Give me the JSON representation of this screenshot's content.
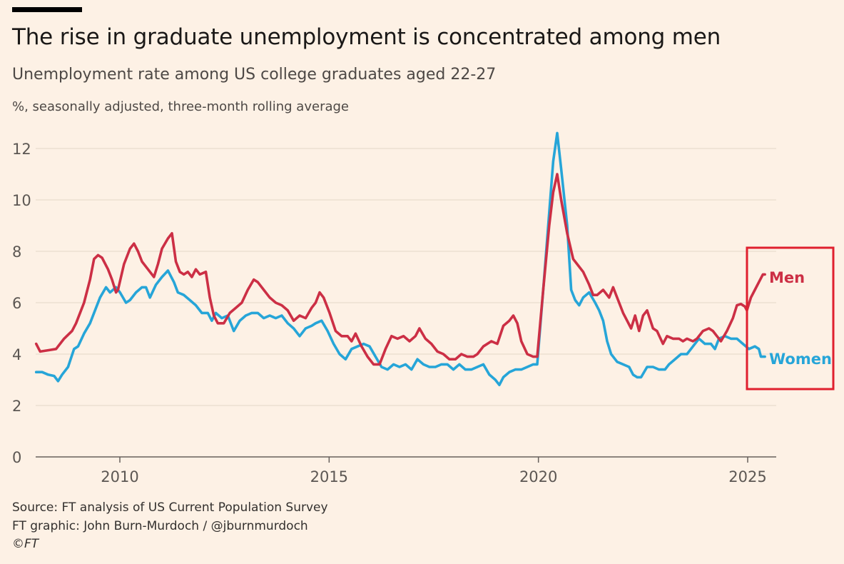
{
  "header": {
    "title": "The rise in graduate unemployment is concentrated among men",
    "subtitle": "Unemployment rate among US college graduates aged 22-27",
    "unit_note": "%, seasonally adjusted, three-month rolling average"
  },
  "footer": {
    "source": "Source: FT analysis of US Current Population Survey",
    "credit": "FT graphic: John Burn-Murdoch / @jburnmurdoch",
    "copyright": "©FT"
  },
  "chart_data": {
    "type": "line",
    "ylabel": "",
    "xlabel": "",
    "xlim": [
      2008.0,
      2025.65
    ],
    "ylim": [
      0,
      12.5
    ],
    "yticks": [
      0,
      2,
      4,
      6,
      8,
      10,
      12
    ],
    "xticks": [
      2010,
      2015,
      2020,
      2025
    ],
    "grid": true,
    "legend": "direct labels at line ends, right",
    "colors": {
      "Men": "#cc2f45",
      "Women": "#26a5d8",
      "highlight_box": "#e0202e"
    },
    "highlight_box": {
      "x_range": [
        2024.95,
        2025.65
      ],
      "y_range": [
        2.7,
        8.3
      ]
    },
    "series": [
      {
        "name": "Men",
        "points": [
          [
            2008.0,
            4.4
          ],
          [
            2008.1,
            4.1
          ],
          [
            2008.3,
            4.15
          ],
          [
            2008.5,
            4.2
          ],
          [
            2008.7,
            4.6
          ],
          [
            2008.9,
            4.9
          ],
          [
            2009.0,
            5.2
          ],
          [
            2009.2,
            6.0
          ],
          [
            2009.35,
            6.9
          ],
          [
            2009.45,
            7.7
          ],
          [
            2009.55,
            7.85
          ],
          [
            2009.65,
            7.75
          ],
          [
            2009.8,
            7.3
          ],
          [
            2009.9,
            6.9
          ],
          [
            2010.0,
            6.4
          ],
          [
            2010.05,
            6.5
          ],
          [
            2010.2,
            7.5
          ],
          [
            2010.35,
            8.1
          ],
          [
            2010.45,
            8.3
          ],
          [
            2010.55,
            8.0
          ],
          [
            2010.65,
            7.6
          ],
          [
            2010.8,
            7.3
          ],
          [
            2010.95,
            7.0
          ],
          [
            2011.05,
            7.5
          ],
          [
            2011.15,
            8.1
          ],
          [
            2011.3,
            8.5
          ],
          [
            2011.4,
            8.7
          ],
          [
            2011.5,
            7.6
          ],
          [
            2011.6,
            7.2
          ],
          [
            2011.7,
            7.1
          ],
          [
            2011.8,
            7.2
          ],
          [
            2011.9,
            7.0
          ],
          [
            2012.0,
            7.3
          ],
          [
            2012.1,
            7.1
          ],
          [
            2012.25,
            7.2
          ],
          [
            2012.35,
            6.2
          ],
          [
            2012.45,
            5.5
          ],
          [
            2012.55,
            5.2
          ],
          [
            2012.7,
            5.2
          ],
          [
            2012.85,
            5.6
          ],
          [
            2013.0,
            5.8
          ],
          [
            2013.15,
            6.0
          ],
          [
            2013.3,
            6.5
          ],
          [
            2013.45,
            6.9
          ],
          [
            2013.55,
            6.8
          ],
          [
            2013.7,
            6.5
          ],
          [
            2013.85,
            6.2
          ],
          [
            2014.0,
            6.0
          ],
          [
            2014.15,
            5.9
          ],
          [
            2014.3,
            5.7
          ],
          [
            2014.45,
            5.3
          ],
          [
            2014.6,
            5.5
          ],
          [
            2014.75,
            5.4
          ],
          [
            2014.9,
            5.8
          ],
          [
            2015.0,
            6.0
          ],
          [
            2015.1,
            6.4
          ],
          [
            2015.2,
            6.2
          ],
          [
            2015.35,
            5.6
          ],
          [
            2015.5,
            4.9
          ],
          [
            2015.65,
            4.7
          ],
          [
            2015.8,
            4.7
          ],
          [
            2015.9,
            4.5
          ],
          [
            2016.0,
            4.8
          ],
          [
            2016.15,
            4.3
          ],
          [
            2016.3,
            3.9
          ],
          [
            2016.45,
            3.6
          ],
          [
            2016.6,
            3.6
          ],
          [
            2016.75,
            4.2
          ],
          [
            2016.9,
            4.7
          ],
          [
            2017.05,
            4.6
          ],
          [
            2017.2,
            4.7
          ],
          [
            2017.35,
            4.5
          ],
          [
            2017.5,
            4.7
          ],
          [
            2017.6,
            5.0
          ],
          [
            2017.75,
            4.6
          ],
          [
            2017.9,
            4.4
          ],
          [
            2018.05,
            4.1
          ],
          [
            2018.2,
            4.0
          ],
          [
            2018.35,
            3.8
          ],
          [
            2018.5,
            3.8
          ],
          [
            2018.65,
            4.0
          ],
          [
            2018.8,
            3.9
          ],
          [
            2018.95,
            3.9
          ],
          [
            2019.05,
            4.0
          ],
          [
            2019.2,
            4.3
          ],
          [
            2019.4,
            4.5
          ],
          [
            2019.55,
            4.4
          ],
          [
            2019.7,
            5.1
          ],
          [
            2019.85,
            5.3
          ],
          [
            2019.95,
            5.5
          ],
          [
            2020.05,
            5.2
          ],
          [
            2020.15,
            4.5
          ],
          [
            2020.3,
            4.0
          ],
          [
            2020.45,
            3.9
          ],
          [
            2020.55,
            3.9
          ],
          [
            2020.7,
            6.5
          ],
          [
            2020.85,
            9.0
          ],
          [
            2020.95,
            10.3
          ],
          [
            2021.05,
            11.0
          ],
          [
            2021.15,
            10.0
          ],
          [
            2021.3,
            8.7
          ],
          [
            2021.45,
            7.7
          ],
          [
            2021.55,
            7.5
          ],
          [
            2021.7,
            7.2
          ],
          [
            2021.85,
            6.7
          ],
          [
            2021.95,
            6.3
          ],
          [
            2022.05,
            6.3
          ],
          [
            2022.2,
            6.5
          ],
          [
            2022.35,
            6.2
          ],
          [
            2022.45,
            6.6
          ],
          [
            2022.6,
            6.0
          ],
          [
            2022.7,
            5.6
          ],
          [
            2022.8,
            5.3
          ],
          [
            2022.9,
            5.0
          ],
          [
            2023.0,
            5.5
          ],
          [
            2023.1,
            4.9
          ],
          [
            2023.2,
            5.5
          ],
          [
            2023.3,
            5.7
          ],
          [
            2023.45,
            5.0
          ],
          [
            2023.55,
            4.9
          ],
          [
            2023.7,
            4.4
          ],
          [
            2023.8,
            4.7
          ],
          [
            2023.95,
            4.6
          ],
          [
            2024.1,
            4.6
          ],
          [
            2024.2,
            4.5
          ],
          [
            2024.3,
            4.6
          ],
          [
            2024.45,
            4.5
          ],
          [
            2024.55,
            4.6
          ],
          [
            2024.7,
            4.9
          ],
          [
            2024.85,
            5.0
          ],
          [
            2024.95,
            4.9
          ],
          [
            2025.05,
            4.7
          ],
          [
            2025.15,
            4.5
          ],
          [
            2025.3,
            4.9
          ],
          [
            2025.45,
            5.4
          ],
          [
            2025.55,
            5.9
          ],
          [
            2025.65,
            5.95
          ],
          [
            2025.75,
            5.85
          ],
          [
            2025.8,
            5.7
          ],
          [
            2025.9,
            6.2
          ],
          [
            2026.0,
            6.5
          ],
          [
            2026.1,
            6.8
          ],
          [
            2026.2,
            7.1
          ],
          [
            2026.25,
            7.1
          ]
        ]
      },
      {
        "name": "Women",
        "points": [
          [
            2008.0,
            3.3
          ],
          [
            2008.15,
            3.3
          ],
          [
            2008.3,
            3.2
          ],
          [
            2008.45,
            3.15
          ],
          [
            2008.55,
            2.95
          ],
          [
            2008.65,
            3.2
          ],
          [
            2008.8,
            3.5
          ],
          [
            2008.95,
            4.2
          ],
          [
            2009.05,
            4.3
          ],
          [
            2009.2,
            4.8
          ],
          [
            2009.35,
            5.2
          ],
          [
            2009.5,
            5.8
          ],
          [
            2009.6,
            6.2
          ],
          [
            2009.75,
            6.6
          ],
          [
            2009.85,
            6.4
          ],
          [
            2010.0,
            6.6
          ],
          [
            2010.1,
            6.4
          ],
          [
            2010.25,
            6.0
          ],
          [
            2010.35,
            6.1
          ],
          [
            2010.5,
            6.4
          ],
          [
            2010.65,
            6.6
          ],
          [
            2010.75,
            6.6
          ],
          [
            2010.85,
            6.2
          ],
          [
            2011.0,
            6.7
          ],
          [
            2011.15,
            7.0
          ],
          [
            2011.3,
            7.25
          ],
          [
            2011.45,
            6.8
          ],
          [
            2011.55,
            6.4
          ],
          [
            2011.7,
            6.3
          ],
          [
            2011.85,
            6.1
          ],
          [
            2012.0,
            5.9
          ],
          [
            2012.15,
            5.6
          ],
          [
            2012.3,
            5.6
          ],
          [
            2012.4,
            5.3
          ],
          [
            2012.5,
            5.6
          ],
          [
            2012.65,
            5.4
          ],
          [
            2012.8,
            5.5
          ],
          [
            2012.95,
            4.9
          ],
          [
            2013.1,
            5.3
          ],
          [
            2013.25,
            5.5
          ],
          [
            2013.4,
            5.6
          ],
          [
            2013.55,
            5.6
          ],
          [
            2013.7,
            5.4
          ],
          [
            2013.85,
            5.5
          ],
          [
            2014.0,
            5.4
          ],
          [
            2014.15,
            5.5
          ],
          [
            2014.3,
            5.2
          ],
          [
            2014.45,
            5.0
          ],
          [
            2014.6,
            4.7
          ],
          [
            2014.75,
            5.0
          ],
          [
            2014.9,
            5.1
          ],
          [
            2015.0,
            5.2
          ],
          [
            2015.15,
            5.3
          ],
          [
            2015.3,
            4.9
          ],
          [
            2015.45,
            4.4
          ],
          [
            2015.6,
            4.0
          ],
          [
            2015.75,
            3.8
          ],
          [
            2015.9,
            4.2
          ],
          [
            2016.05,
            4.3
          ],
          [
            2016.2,
            4.4
          ],
          [
            2016.35,
            4.3
          ],
          [
            2016.5,
            3.9
          ],
          [
            2016.65,
            3.5
          ],
          [
            2016.8,
            3.4
          ],
          [
            2016.95,
            3.6
          ],
          [
            2017.1,
            3.5
          ],
          [
            2017.25,
            3.6
          ],
          [
            2017.4,
            3.4
          ],
          [
            2017.55,
            3.8
          ],
          [
            2017.7,
            3.6
          ],
          [
            2017.85,
            3.5
          ],
          [
            2018.0,
            3.5
          ],
          [
            2018.15,
            3.6
          ],
          [
            2018.3,
            3.6
          ],
          [
            2018.45,
            3.4
          ],
          [
            2018.6,
            3.6
          ],
          [
            2018.75,
            3.4
          ],
          [
            2018.9,
            3.4
          ],
          [
            2019.05,
            3.5
          ],
          [
            2019.2,
            3.6
          ],
          [
            2019.35,
            3.2
          ],
          [
            2019.5,
            3.0
          ],
          [
            2019.6,
            2.8
          ],
          [
            2019.7,
            3.1
          ],
          [
            2019.85,
            3.3
          ],
          [
            2020.0,
            3.4
          ],
          [
            2020.15,
            3.4
          ],
          [
            2020.3,
            3.5
          ],
          [
            2020.45,
            3.6
          ],
          [
            2020.55,
            3.6
          ],
          [
            2020.7,
            6.5
          ],
          [
            2020.85,
            9.5
          ],
          [
            2020.95,
            11.5
          ],
          [
            2021.05,
            12.6
          ],
          [
            2021.15,
            11.2
          ],
          [
            2021.3,
            9.0
          ],
          [
            2021.4,
            6.5
          ],
          [
            2021.5,
            6.1
          ],
          [
            2021.6,
            5.9
          ],
          [
            2021.7,
            6.2
          ],
          [
            2021.85,
            6.4
          ],
          [
            2022.0,
            6.0
          ],
          [
            2022.1,
            5.7
          ],
          [
            2022.2,
            5.3
          ],
          [
            2022.3,
            4.5
          ],
          [
            2022.4,
            4.0
          ],
          [
            2022.55,
            3.7
          ],
          [
            2022.7,
            3.6
          ],
          [
            2022.85,
            3.5
          ],
          [
            2022.95,
            3.2
          ],
          [
            2023.05,
            3.1
          ],
          [
            2023.15,
            3.1
          ],
          [
            2023.3,
            3.5
          ],
          [
            2023.45,
            3.5
          ],
          [
            2023.6,
            3.4
          ],
          [
            2023.75,
            3.4
          ],
          [
            2023.85,
            3.6
          ],
          [
            2024.0,
            3.8
          ],
          [
            2024.15,
            4.0
          ],
          [
            2024.3,
            4.0
          ],
          [
            2024.45,
            4.3
          ],
          [
            2024.6,
            4.6
          ],
          [
            2024.75,
            4.4
          ],
          [
            2024.9,
            4.4
          ],
          [
            2025.0,
            4.2
          ],
          [
            2025.1,
            4.6
          ],
          [
            2025.25,
            4.7
          ],
          [
            2025.4,
            4.6
          ],
          [
            2025.55,
            4.6
          ],
          [
            2025.7,
            4.4
          ],
          [
            2025.85,
            4.2
          ],
          [
            2026.0,
            4.3
          ],
          [
            2026.1,
            4.2
          ],
          [
            2026.15,
            3.9
          ],
          [
            2026.25,
            3.9
          ]
        ]
      }
    ]
  }
}
